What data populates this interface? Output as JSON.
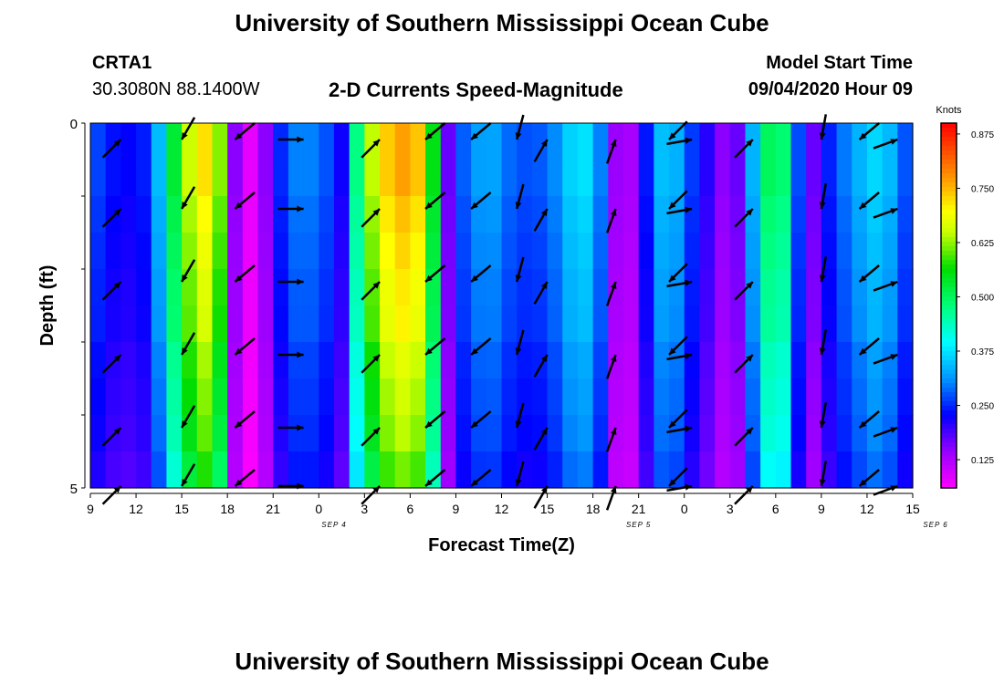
{
  "header": {
    "title_top": "University of Southern Mississippi Ocean Cube",
    "station": "CRTA1",
    "coords": "30.3080N 88.1400W",
    "subtitle": "2-D Currents Speed-Magnitude",
    "model_label": "Model Start Time",
    "model_time": "09/04/2020 Hour 09"
  },
  "footer": {
    "title_bottom": "University of Southern Mississippi Ocean Cube"
  },
  "chart_data": {
    "type": "heatmap",
    "xlabel": "Forecast Time(Z)",
    "ylabel": "Depth (ft)",
    "y_ticks": [
      "0",
      "5"
    ],
    "ylim": [
      0,
      5
    ],
    "x_start_hour": 9,
    "x_hours": 54,
    "x_tick_labels": [
      "9",
      "12",
      "15",
      "18",
      "21",
      "0",
      "3",
      "6",
      "9",
      "12",
      "15",
      "18",
      "21",
      "0",
      "3",
      "6",
      "9",
      "12",
      "15"
    ],
    "date_labels": [
      {
        "label": "SEP 4",
        "hour": 16
      },
      {
        "label": "SEP 5",
        "hour": 36
      },
      {
        "label": "SEP 6",
        "hour": 55.5
      }
    ],
    "colorbar": {
      "unit": "Knots",
      "ticks": [
        "0.875",
        "0.750",
        "0.625",
        "0.500",
        "0.375",
        "0.250",
        "0.125"
      ],
      "range": [
        0.06,
        0.9
      ]
    },
    "rows_depth": [
      0.25,
      0.75,
      1.25,
      1.75,
      2.25,
      2.75,
      3.25,
      3.75,
      4.25,
      4.75
    ],
    "speed_profile": [
      {
        "hour": 0,
        "speed": 0.28
      },
      {
        "hour": 2,
        "speed": 0.22
      },
      {
        "hour": 4,
        "speed": 0.25
      },
      {
        "hour": 6,
        "speed": 0.62
      },
      {
        "hour": 7.5,
        "speed": 0.72
      },
      {
        "hour": 8.5,
        "speed": 0.62
      },
      {
        "hour": 9.5,
        "speed": 0.15
      },
      {
        "hour": 10.5,
        "speed": 0.08
      },
      {
        "hour": 11.5,
        "speed": 0.15
      },
      {
        "hour": 13,
        "speed": 0.3
      },
      {
        "hour": 15,
        "speed": 0.3
      },
      {
        "hour": 16.5,
        "speed": 0.22
      },
      {
        "hour": 18,
        "speed": 0.6
      },
      {
        "hour": 20,
        "speed": 0.78
      },
      {
        "hour": 21.5,
        "speed": 0.74
      },
      {
        "hour": 22.5,
        "speed": 0.55
      },
      {
        "hour": 23.5,
        "speed": 0.17
      },
      {
        "hour": 24.5,
        "speed": 0.28
      },
      {
        "hour": 26,
        "speed": 0.34
      },
      {
        "hour": 28,
        "speed": 0.27
      },
      {
        "hour": 30,
        "speed": 0.28
      },
      {
        "hour": 31.5,
        "speed": 0.36
      },
      {
        "hour": 33,
        "speed": 0.38
      },
      {
        "hour": 34.5,
        "speed": 0.14
      },
      {
        "hour": 35,
        "speed": 0.1
      },
      {
        "hour": 36,
        "speed": 0.16
      },
      {
        "hour": 37,
        "speed": 0.32
      },
      {
        "hour": 38,
        "speed": 0.37
      },
      {
        "hour": 39.5,
        "speed": 0.26
      },
      {
        "hour": 41,
        "speed": 0.18
      },
      {
        "hour": 42,
        "speed": 0.12
      },
      {
        "hour": 43,
        "speed": 0.22
      },
      {
        "hour": 44,
        "speed": 0.45
      },
      {
        "hour": 45,
        "speed": 0.55
      },
      {
        "hour": 46,
        "speed": 0.42
      },
      {
        "hour": 47,
        "speed": 0.12
      },
      {
        "hour": 48,
        "speed": 0.22
      },
      {
        "hour": 50,
        "speed": 0.32
      },
      {
        "hour": 52,
        "speed": 0.38
      },
      {
        "hour": 53,
        "speed": 0.3
      },
      {
        "hour": 54,
        "speed": 0.25
      }
    ],
    "vector_hours": [
      2,
      6,
      9.5,
      14,
      19,
      22,
      25,
      28,
      30,
      34.5,
      38,
      39.5,
      43.5,
      48,
      50.5,
      53
    ],
    "vector_depths": [
      0,
      1,
      2,
      3,
      4,
      5
    ],
    "vector_angles_deg": [
      225,
      60,
      40,
      180,
      225,
      40,
      40,
      75,
      240,
      250,
      45,
      190,
      225,
      80,
      40,
      200
    ],
    "speed_depth_factor": [
      1.0,
      1.0,
      0.97,
      0.95,
      0.93,
      0.92,
      0.88,
      0.86,
      0.84,
      0.8
    ]
  }
}
